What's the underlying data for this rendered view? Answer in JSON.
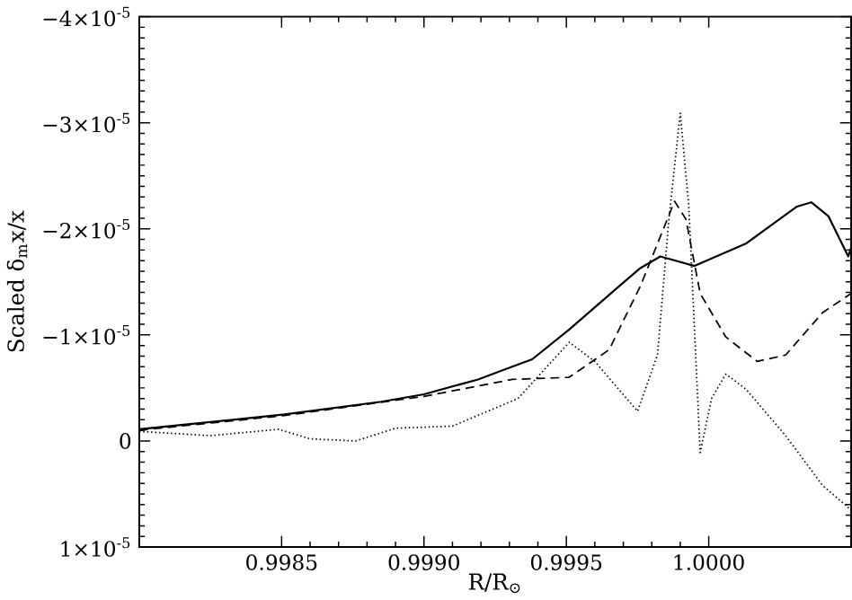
{
  "chart_data": {
    "type": "line",
    "xlabel": "R/R$_{⊙}$",
    "ylabel": "Scaled δ$_{m}$x/x",
    "xlim": [
      0.998,
      1.0005
    ],
    "ylim": [
      1e-05,
      -4e-05
    ],
    "xticks": [
      0.9985,
      {
        "value": 0.999,
        "label": "0.9990"
      },
      0.9995,
      {
        "value": 1.0,
        "label": "1.0000"
      }
    ],
    "yticks": [
      {
        "value": -4e-05,
        "label": "−4×10$^{-5}$"
      },
      {
        "value": -3e-05,
        "label": "−3×10$^{-5}$"
      },
      {
        "value": -2e-05,
        "label": "−2×10$^{-5}$"
      },
      {
        "value": -1e-05,
        "label": "−1×10$^{-5}$"
      },
      0,
      {
        "value": 1e-05,
        "label": "1×10$^{-5}$"
      }
    ],
    "grid": false,
    "marker": "none",
    "series": [
      {
        "color": "#000000",
        "line_style": "solid",
        "x": [
          0.998,
          0.99851,
          0.99885,
          0.999,
          0.99919,
          0.99928,
          0.99938,
          0.99951,
          0.99969,
          0.99976,
          0.99983,
          0.99995,
          1.00013,
          1.00031,
          1.00036,
          1.00042,
          1.00049,
          1.0005
        ],
        "values": [
          -1.1e-06,
          -2.5e-06,
          -3.7e-06,
          -4.4e-06,
          -5.8e-06,
          -6.7e-06,
          -7.7e-06,
          -1.05e-05,
          -1.47e-05,
          -1.63e-05,
          -1.74e-05,
          -1.65e-05,
          -1.86e-05,
          -2.21e-05,
          -2.25e-05,
          -2.12e-05,
          -1.74e-05,
          -1.82e-05
        ]
      },
      {
        "color": "#000000",
        "line_style": "dashed",
        "x": [
          0.998,
          0.99851,
          0.999,
          0.99931,
          0.99951,
          0.99965,
          0.99976,
          0.99988,
          0.99992,
          0.99997,
          1.00006,
          1.00017,
          1.00027,
          1.0004,
          1.0005
        ],
        "values": [
          -1e-06,
          -2.4e-06,
          -4.2e-06,
          -5.8e-06,
          -6e-06,
          -8.6e-06,
          -1.46e-05,
          -2.26e-05,
          -2.09e-05,
          -1.39e-05,
          -9.8e-06,
          -7.5e-06,
          -8.1e-06,
          -1.21e-05,
          -1.39e-05
        ]
      },
      {
        "color": "#000000",
        "line_style": "dotted",
        "x": [
          0.998,
          0.99825,
          0.99849,
          0.9986,
          0.99876,
          0.9989,
          0.9991,
          0.99933,
          0.99951,
          0.9996,
          0.99975,
          0.99982,
          0.99986,
          0.9999,
          0.99993,
          0.99997,
          1.00001,
          1.00006,
          1.00013,
          1.00027,
          1.0004,
          1.0005
        ],
        "values": [
          -9e-07,
          -5e-07,
          -1.1e-06,
          -2e-07,
          0,
          -1.2e-06,
          -1.4e-06,
          -4e-06,
          -9.3e-06,
          -7.5e-06,
          -2.8e-06,
          -8.1e-06,
          -2.09e-05,
          -3.09e-05,
          -2.21e-05,
          1.1e-06,
          -4e-06,
          -6.3e-06,
          -4.9e-06,
          -5e-07,
          4.2e-06,
          6.5e-06
        ]
      }
    ]
  }
}
